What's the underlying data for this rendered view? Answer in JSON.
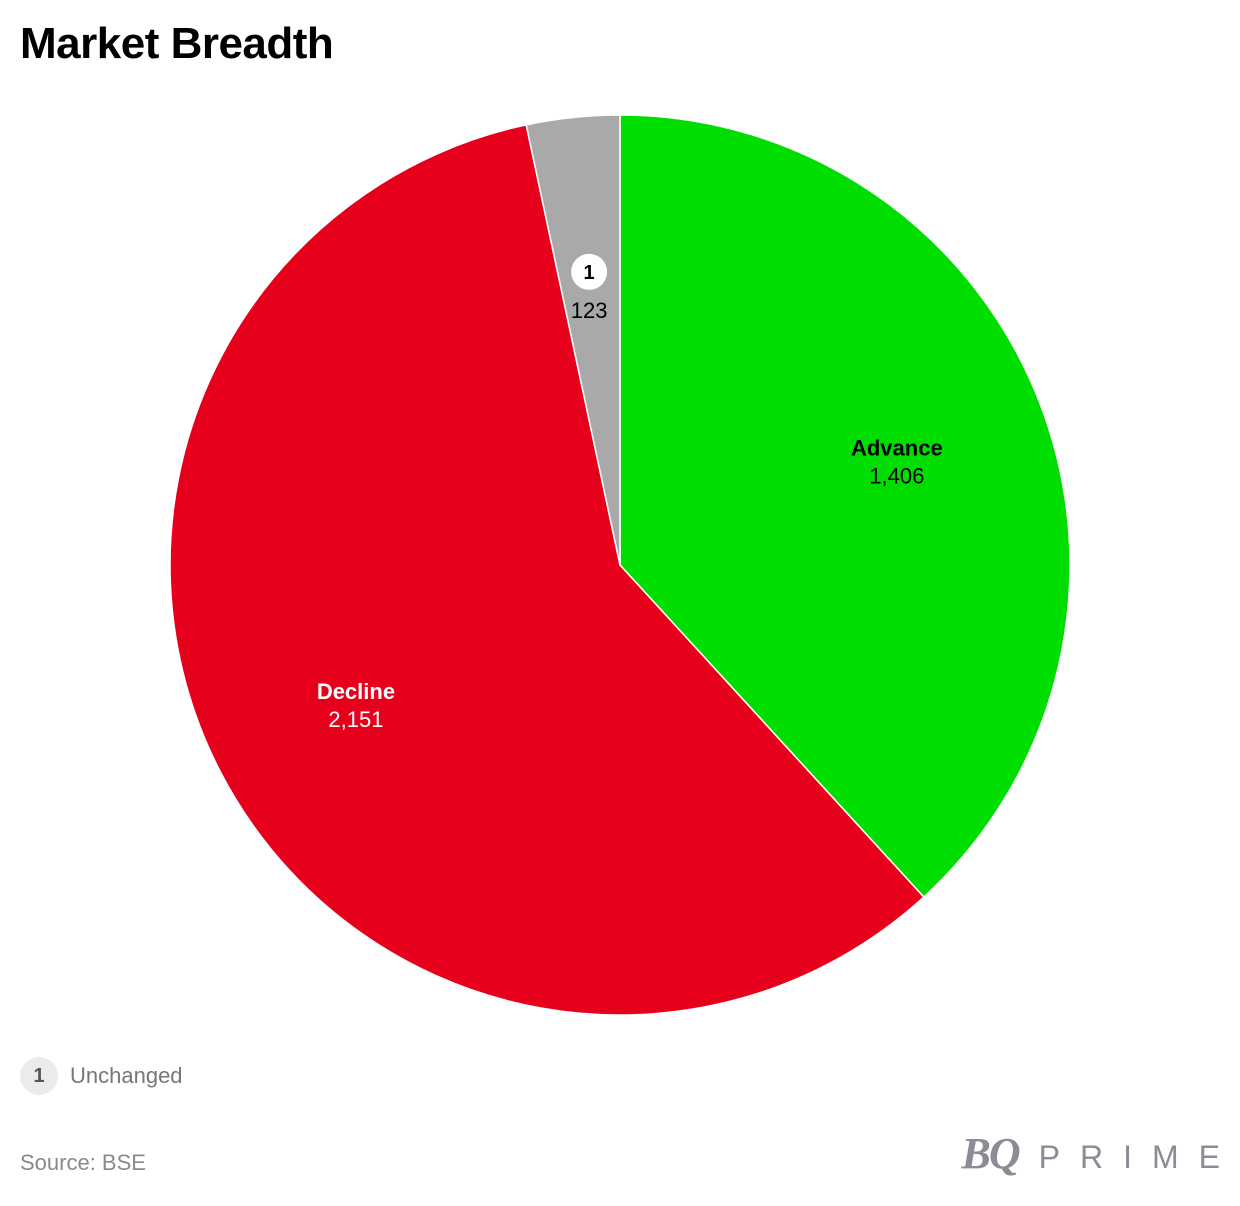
{
  "chart_data": {
    "type": "pie",
    "title": "Market Breadth",
    "slices": [
      {
        "label": "Advance",
        "value": 1406,
        "value_text": "1,406",
        "color": "#00dd00",
        "label_color": "#000000",
        "footnote": ""
      },
      {
        "label": "Decline",
        "value": 2151,
        "value_text": "2,151",
        "color": "#e6001c",
        "label_color": "#ffffff",
        "footnote": ""
      },
      {
        "label": "Unchanged",
        "value": 123,
        "value_text": "123",
        "color": "#a9a9a9",
        "label_color": "#000000",
        "footnote": "1"
      }
    ],
    "start_angle": "12 o'clock",
    "direction": "clockwise",
    "legend": {
      "position": "bottom-left",
      "items": [
        {
          "badge": "1",
          "label": "Unchanged"
        }
      ]
    }
  },
  "source": "Source: BSE",
  "brand": {
    "bq": "BQ",
    "prime": "PRIME"
  }
}
